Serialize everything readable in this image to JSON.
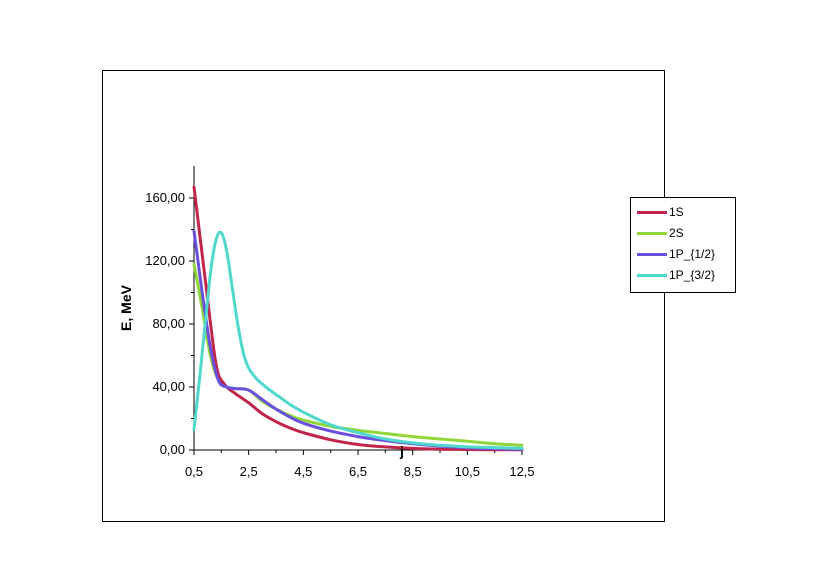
{
  "chart_data": {
    "type": "line",
    "xlabel": "j",
    "ylabel": "E, MeV",
    "xlim": [
      0.5,
      12.5
    ],
    "ylim": [
      0,
      180
    ],
    "x_ticks": [
      "0,5",
      "2,5",
      "4,5",
      "6,5",
      "8,5",
      "10,5",
      "12,5"
    ],
    "y_ticks": [
      "0,00",
      "40,00",
      "80,00",
      "120,00",
      "160,00"
    ],
    "legend_position": "top-right",
    "grid": false,
    "series": [
      {
        "name": "1S",
        "color": "#c0264a",
        "x": [
          0.5,
          0.9,
          1.3,
          1.6,
          2.0,
          2.5,
          3.0,
          3.5,
          4.0,
          4.5,
          5.5,
          6.5,
          7.5,
          8.5,
          9.5,
          10.5,
          11.5,
          12.5
        ],
        "y": [
          167,
          110,
          55,
          42,
          36,
          30,
          23,
          18,
          14,
          11,
          6.5,
          3.5,
          2,
          1,
          0.5,
          0.3,
          0.2,
          0.1
        ]
      },
      {
        "name": "2S",
        "color": "#8fd63a",
        "x": [
          0.5,
          0.8,
          1.1,
          1.4,
          1.7,
          2.0,
          2.5,
          3.0,
          3.5,
          4.0,
          4.5,
          5.5,
          6.5,
          7.5,
          8.5,
          9.5,
          10.5,
          11.5,
          12.5
        ],
        "y": [
          118,
          90,
          60,
          44,
          40,
          39,
          38,
          31,
          26,
          22,
          19,
          15,
          12.5,
          10.5,
          8.5,
          7,
          5.5,
          4,
          3
        ]
      },
      {
        "name": "1P_{1/2}",
        "color": "#6a4fe0",
        "x": [
          0.5,
          0.8,
          1.1,
          1.4,
          1.7,
          2.0,
          2.5,
          3.0,
          3.5,
          4.0,
          4.5,
          5.5,
          6.5,
          7.5,
          8.5,
          9.5,
          10.5,
          11.5,
          12.5
        ],
        "y": [
          139,
          100,
          65,
          44,
          40,
          39,
          38,
          32,
          26,
          21,
          17,
          12,
          8.5,
          6,
          4,
          2.5,
          1.5,
          0.8,
          0.5
        ]
      },
      {
        "name": "1P_{3/2}",
        "color": "#50d8cc",
        "x": [
          0.5,
          0.7,
          0.9,
          1.1,
          1.3,
          1.5,
          1.7,
          1.9,
          2.1,
          2.3,
          2.5,
          2.8,
          3.2,
          3.6,
          4.0,
          4.5,
          5.5,
          6.5,
          7.5,
          8.5,
          9.5,
          10.5,
          11.5,
          12.5
        ],
        "y": [
          13,
          45,
          78,
          112,
          133,
          138,
          126,
          103,
          80,
          62,
          52,
          45,
          39,
          34,
          29,
          24,
          16,
          11,
          7,
          4.5,
          3,
          2,
          1.5,
          1
        ]
      }
    ]
  }
}
